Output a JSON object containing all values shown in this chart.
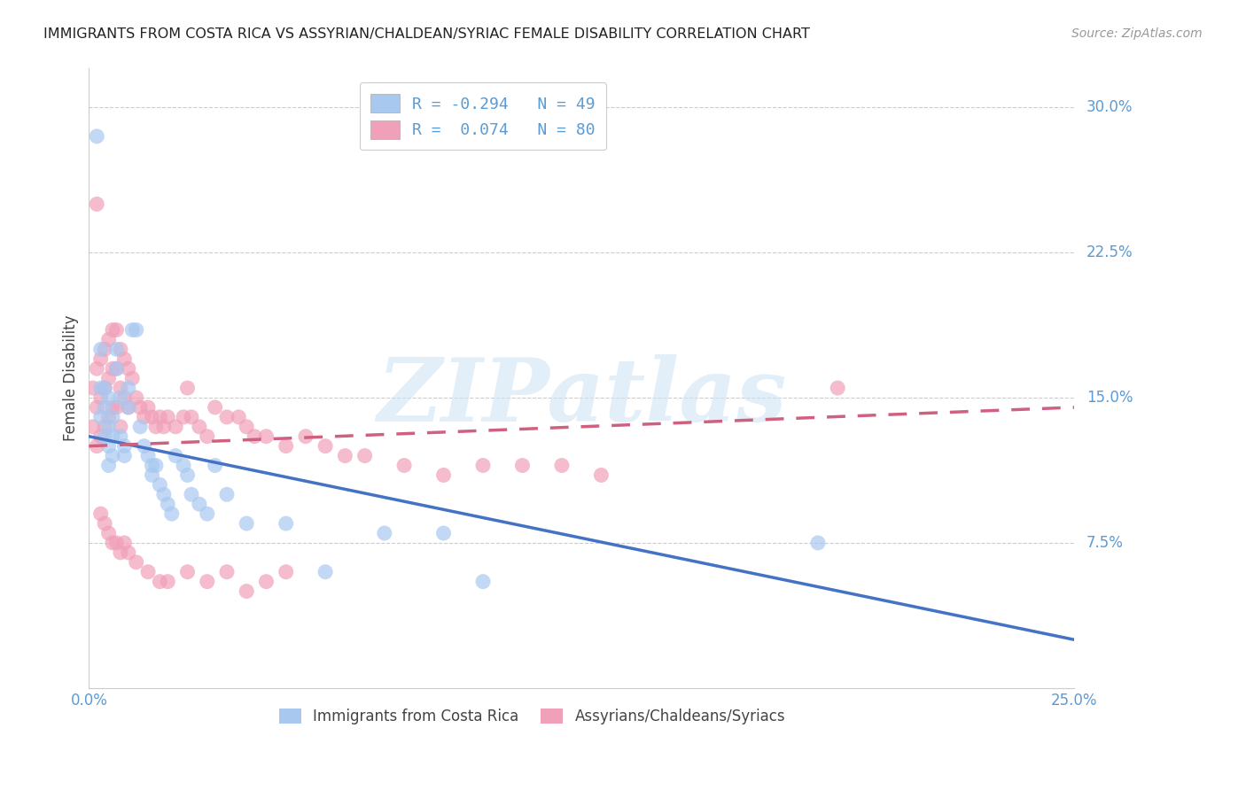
{
  "title": "IMMIGRANTS FROM COSTA RICA VS ASSYRIAN/CHALDEAN/SYRIAC FEMALE DISABILITY CORRELATION CHART",
  "source": "Source: ZipAtlas.com",
  "ylabel": "Female Disability",
  "ytick_labels": [
    "30.0%",
    "22.5%",
    "15.0%",
    "7.5%"
  ],
  "ytick_values": [
    0.3,
    0.225,
    0.15,
    0.075
  ],
  "xmin": 0.0,
  "xmax": 0.25,
  "ymin": 0.0,
  "ymax": 0.32,
  "blue_color": "#A8C8F0",
  "pink_color": "#F0A0B8",
  "blue_line_color": "#4472C4",
  "pink_line_color": "#D06080",
  "legend_blue_R": "-0.294",
  "legend_blue_N": "49",
  "legend_pink_R": "0.074",
  "legend_pink_N": "80",
  "blue_label": "Immigrants from Costa Rica",
  "pink_label": "Assyrians/Chaldeans/Syriacs",
  "watermark": "ZIPatlas",
  "blue_intercept": 0.13,
  "blue_slope": -0.42,
  "pink_intercept": 0.125,
  "pink_slope": 0.08,
  "blue_points_x": [
    0.002,
    0.003,
    0.003,
    0.003,
    0.004,
    0.004,
    0.004,
    0.005,
    0.005,
    0.005,
    0.005,
    0.006,
    0.006,
    0.006,
    0.007,
    0.007,
    0.008,
    0.008,
    0.009,
    0.009,
    0.01,
    0.01,
    0.011,
    0.012,
    0.013,
    0.014,
    0.015,
    0.016,
    0.016,
    0.017,
    0.018,
    0.019,
    0.02,
    0.021,
    0.022,
    0.024,
    0.025,
    0.026,
    0.028,
    0.03,
    0.032,
    0.035,
    0.04,
    0.05,
    0.06,
    0.075,
    0.09,
    0.1,
    0.185
  ],
  "blue_points_y": [
    0.285,
    0.175,
    0.155,
    0.14,
    0.155,
    0.145,
    0.13,
    0.15,
    0.135,
    0.125,
    0.115,
    0.14,
    0.13,
    0.12,
    0.175,
    0.165,
    0.15,
    0.13,
    0.125,
    0.12,
    0.155,
    0.145,
    0.185,
    0.185,
    0.135,
    0.125,
    0.12,
    0.115,
    0.11,
    0.115,
    0.105,
    0.1,
    0.095,
    0.09,
    0.12,
    0.115,
    0.11,
    0.1,
    0.095,
    0.09,
    0.115,
    0.1,
    0.085,
    0.085,
    0.06,
    0.08,
    0.08,
    0.055,
    0.075
  ],
  "pink_points_x": [
    0.001,
    0.001,
    0.002,
    0.002,
    0.002,
    0.003,
    0.003,
    0.003,
    0.004,
    0.004,
    0.004,
    0.005,
    0.005,
    0.005,
    0.006,
    0.006,
    0.006,
    0.007,
    0.007,
    0.007,
    0.008,
    0.008,
    0.008,
    0.009,
    0.009,
    0.01,
    0.01,
    0.011,
    0.012,
    0.013,
    0.014,
    0.015,
    0.016,
    0.017,
    0.018,
    0.019,
    0.02,
    0.022,
    0.024,
    0.025,
    0.026,
    0.028,
    0.03,
    0.032,
    0.035,
    0.038,
    0.04,
    0.042,
    0.045,
    0.05,
    0.055,
    0.06,
    0.065,
    0.07,
    0.08,
    0.09,
    0.1,
    0.11,
    0.12,
    0.13,
    0.003,
    0.004,
    0.005,
    0.006,
    0.007,
    0.008,
    0.009,
    0.01,
    0.012,
    0.015,
    0.018,
    0.02,
    0.025,
    0.03,
    0.035,
    0.04,
    0.045,
    0.05,
    0.19,
    0.002
  ],
  "pink_points_y": [
    0.155,
    0.135,
    0.165,
    0.145,
    0.125,
    0.17,
    0.15,
    0.13,
    0.175,
    0.155,
    0.135,
    0.18,
    0.16,
    0.14,
    0.185,
    0.165,
    0.145,
    0.185,
    0.165,
    0.145,
    0.175,
    0.155,
    0.135,
    0.17,
    0.15,
    0.165,
    0.145,
    0.16,
    0.15,
    0.145,
    0.14,
    0.145,
    0.14,
    0.135,
    0.14,
    0.135,
    0.14,
    0.135,
    0.14,
    0.155,
    0.14,
    0.135,
    0.13,
    0.145,
    0.14,
    0.14,
    0.135,
    0.13,
    0.13,
    0.125,
    0.13,
    0.125,
    0.12,
    0.12,
    0.115,
    0.11,
    0.115,
    0.115,
    0.115,
    0.11,
    0.09,
    0.085,
    0.08,
    0.075,
    0.075,
    0.07,
    0.075,
    0.07,
    0.065,
    0.06,
    0.055,
    0.055,
    0.06,
    0.055,
    0.06,
    0.05,
    0.055,
    0.06,
    0.155,
    0.25
  ]
}
